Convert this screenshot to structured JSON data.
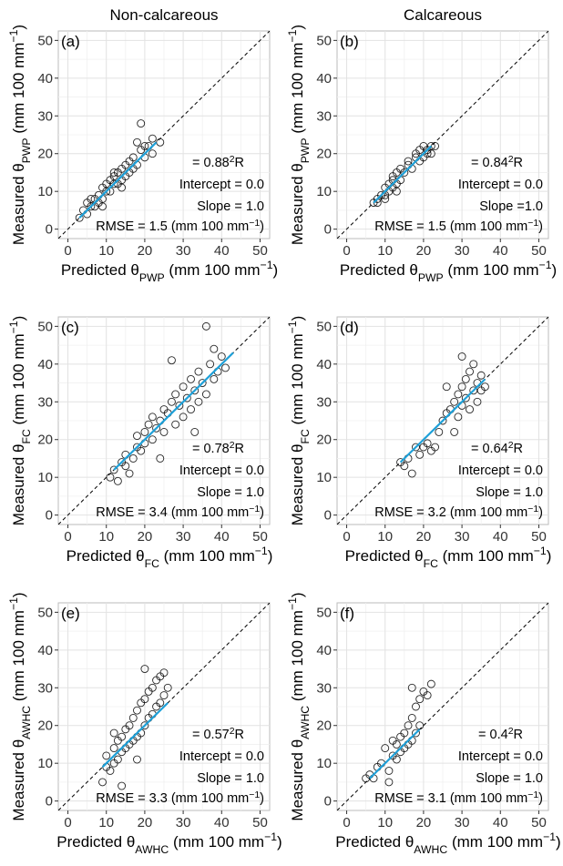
{
  "chart_data": [
    {
      "type": "scatter",
      "title": "Non-calcareous",
      "panel_label": "(a)",
      "xlabel": {
        "text": "Predicted θ",
        "sub": "PWP",
        "unit": " (mm 100 mm",
        "sup": "−1",
        "end": ")"
      },
      "ylabel": {
        "text": "Measured θ",
        "sub": "PWP",
        "unit": " (mm 100 mm",
        "sup": "−1",
        "end": ")"
      },
      "xlim": [
        -2.5,
        52.5
      ],
      "ylim": [
        -2.5,
        52.5
      ],
      "xticks": [
        0,
        10,
        20,
        30,
        40,
        50
      ],
      "yticks": [
        0,
        10,
        20,
        30,
        40,
        50
      ],
      "grid": true,
      "minor_grid": [
        5,
        15,
        25,
        35,
        45
      ],
      "identity_line": true,
      "r2": {
        "label": "R",
        "sup": "2",
        "text": " =  0.88"
      },
      "annotations": [
        "Intercept = 0.0",
        "Slope = 1.0"
      ],
      "rmse": {
        "text": "RMSE = 1.5 (mm 100 mm",
        "sup": "−1",
        "end": ")"
      },
      "series": [
        {
          "color": "#000000",
          "x": [
            3,
            4,
            5,
            5,
            6,
            7,
            7,
            8,
            8,
            9,
            9,
            10,
            10,
            11,
            11,
            12,
            12,
            13,
            13,
            14,
            14,
            15,
            15,
            16,
            16,
            17,
            17,
            18,
            19,
            20,
            21,
            22,
            24,
            22,
            18,
            12,
            6,
            9,
            14,
            20,
            19
          ],
          "values": [
            3,
            5,
            4,
            7,
            6,
            8,
            6,
            9,
            7,
            11,
            8,
            10,
            12,
            10,
            13,
            12,
            14,
            12,
            15,
            13,
            16,
            14,
            17,
            15,
            18,
            16,
            19,
            17,
            21,
            19,
            22,
            20,
            23,
            24,
            23,
            15,
            8,
            6,
            11,
            22,
            28
          ]
        },
        {
          "color": "#1ea0d8",
          "x": [
            3,
            23
          ],
          "values": [
            3,
            23
          ]
        }
      ]
    },
    {
      "type": "scatter",
      "title": "Calcareous",
      "panel_label": "(b)",
      "xlabel": {
        "text": "Predicted θ",
        "sub": "PWP",
        "unit": " (mm 100 mm",
        "sup": "−1",
        "end": ")"
      },
      "ylabel": {
        "text": "Measured θ",
        "sub": "PWP",
        "unit": " (mm 100 mm",
        "sup": "−1",
        "end": ")"
      },
      "xlim": [
        -2.5,
        52.5
      ],
      "ylim": [
        -2.5,
        52.5
      ],
      "xticks": [
        0,
        10,
        20,
        30,
        40,
        50
      ],
      "yticks": [
        0,
        10,
        20,
        30,
        40,
        50
      ],
      "grid": true,
      "minor_grid": [
        5,
        15,
        25,
        35,
        45
      ],
      "identity_line": true,
      "r2": {
        "label": "R",
        "sup": "2",
        "text": " =  0.84"
      },
      "annotations": [
        "Intercept = 0.0",
        "Slope =1.0"
      ],
      "rmse": {
        "text": "RMSE = 1.5 (mm 100 mm",
        "sup": "−1",
        "end": ")"
      },
      "series": [
        {
          "color": "#000000",
          "x": [
            7,
            8,
            8,
            9,
            10,
            10,
            11,
            11,
            12,
            12,
            12,
            13,
            13,
            14,
            14,
            15,
            16,
            17,
            18,
            18,
            19,
            19,
            20,
            20,
            21,
            21,
            22,
            22,
            23,
            16,
            13,
            10
          ],
          "values": [
            7,
            8,
            7,
            9,
            9,
            11,
            10,
            12,
            11,
            13,
            14,
            12,
            15,
            13,
            16,
            15,
            17,
            16,
            19,
            20,
            18,
            21,
            19,
            22,
            20,
            21,
            22,
            20,
            22,
            18,
            10,
            8
          ]
        },
        {
          "color": "#1ea0d8",
          "x": [
            7,
            22
          ],
          "values": [
            7,
            22
          ]
        }
      ]
    },
    {
      "type": "scatter",
      "panel_label": "(c)",
      "xlabel": {
        "text": "Predicted θ",
        "sub": "FC",
        "unit": " (mm 100 mm",
        "sup": "−1",
        "end": ")"
      },
      "ylabel": {
        "text": "Measured θ",
        "sub": "FC",
        "unit": " (mm 100 mm",
        "sup": "−1",
        "end": ")"
      },
      "xlim": [
        -2.5,
        52.5
      ],
      "ylim": [
        -2.5,
        52.5
      ],
      "xticks": [
        0,
        10,
        20,
        30,
        40,
        50
      ],
      "yticks": [
        0,
        10,
        20,
        30,
        40,
        50
      ],
      "grid": true,
      "minor_grid": [
        5,
        15,
        25,
        35,
        45
      ],
      "identity_line": true,
      "r2": {
        "label": "R",
        "sup": "2",
        "text": " =  0.78"
      },
      "annotations": [
        "Intercept = 0.0",
        "Slope = 1.0"
      ],
      "rmse": {
        "text": "RMSE = 3.4 (mm 100 mm",
        "sup": "−1",
        "end": ")"
      },
      "series": [
        {
          "color": "#000000",
          "x": [
            11,
            12,
            13,
            14,
            15,
            15,
            16,
            17,
            18,
            18,
            19,
            20,
            20,
            21,
            22,
            22,
            23,
            24,
            25,
            25,
            26,
            27,
            28,
            28,
            29,
            30,
            30,
            31,
            32,
            32,
            33,
            34,
            34,
            35,
            36,
            37,
            38,
            38,
            39,
            40,
            41,
            36,
            27,
            24,
            33
          ],
          "values": [
            10,
            12,
            9,
            14,
            13,
            16,
            11,
            15,
            18,
            21,
            17,
            22,
            19,
            24,
            20,
            26,
            23,
            25,
            22,
            28,
            27,
            30,
            24,
            32,
            29,
            26,
            34,
            31,
            28,
            36,
            33,
            30,
            38,
            35,
            32,
            40,
            36,
            44,
            38,
            42,
            39,
            50,
            41,
            15,
            22
          ]
        },
        {
          "color": "#1ea0d8",
          "x": [
            12,
            43
          ],
          "values": [
            12,
            43
          ]
        }
      ]
    },
    {
      "type": "scatter",
      "panel_label": "(d)",
      "xlabel": {
        "text": "Predicted θ",
        "sub": "FC",
        "unit": " (mm 100 mm",
        "sup": "−1",
        "end": ")"
      },
      "ylabel": {
        "text": "Measured θ",
        "sub": "FC",
        "unit": " (mm 100 mm",
        "sup": "−1",
        "end": ")"
      },
      "xlim": [
        -2.5,
        52.5
      ],
      "ylim": [
        -2.5,
        52.5
      ],
      "xticks": [
        0,
        10,
        20,
        30,
        40,
        50
      ],
      "yticks": [
        0,
        10,
        20,
        30,
        40,
        50
      ],
      "grid": true,
      "minor_grid": [
        5,
        15,
        25,
        35,
        45
      ],
      "identity_line": true,
      "r2": {
        "label": "R",
        "sup": "2",
        "text": " =  0.64"
      },
      "annotations": [
        "Intercept = 0.0",
        "Slope = 1.0"
      ],
      "rmse": {
        "text": "RMSE = 3.2 (mm 100 mm",
        "sup": "−1",
        "end": ")"
      },
      "series": [
        {
          "color": "#000000",
          "x": [
            14,
            15,
            16,
            17,
            18,
            19,
            20,
            21,
            22,
            23,
            24,
            25,
            26,
            27,
            28,
            28,
            29,
            29,
            30,
            30,
            31,
            31,
            32,
            32,
            33,
            33,
            34,
            34,
            35,
            35,
            36,
            30,
            26
          ],
          "values": [
            14,
            13,
            15,
            11,
            18,
            16,
            18,
            19,
            17,
            18,
            22,
            25,
            27,
            28,
            30,
            22,
            32,
            26,
            29,
            34,
            31,
            36,
            28,
            38,
            33,
            40,
            35,
            30,
            37,
            33,
            34,
            42,
            34
          ]
        },
        {
          "color": "#1ea0d8",
          "x": [
            14,
            36
          ],
          "values": [
            14,
            36
          ]
        }
      ]
    },
    {
      "type": "scatter",
      "panel_label": "(e)",
      "xlabel": {
        "text": "Predicted θ",
        "sub": "AWHC",
        "unit": " (mm 100 mm",
        "sup": "−1",
        "end": ")"
      },
      "ylabel": {
        "text": "Measured θ",
        "sub": "AWHC",
        "unit": " (mm 100 mm",
        "sup": "−1",
        "end": ")"
      },
      "xlim": [
        -2.5,
        52.5
      ],
      "ylim": [
        -2.5,
        52.5
      ],
      "xticks": [
        0,
        10,
        20,
        30,
        40,
        50
      ],
      "yticks": [
        0,
        10,
        20,
        30,
        40,
        50
      ],
      "grid": true,
      "minor_grid": [
        5,
        15,
        25,
        35,
        45
      ],
      "identity_line": true,
      "r2": {
        "label": "R",
        "sup": "2",
        "text": " =  0.57"
      },
      "annotations": [
        "Intercept = 0.0",
        "Slope = 1.0"
      ],
      "rmse": {
        "text": "RMSE = 3.3 (mm 100 mm",
        "sup": "−1",
        "end": ")"
      },
      "series": [
        {
          "color": "#000000",
          "x": [
            9,
            10,
            10,
            11,
            12,
            12,
            13,
            13,
            14,
            14,
            15,
            15,
            16,
            16,
            17,
            17,
            18,
            18,
            19,
            19,
            20,
            20,
            21,
            21,
            22,
            22,
            23,
            23,
            24,
            24,
            25,
            25,
            26,
            20,
            18,
            14,
            12
          ],
          "values": [
            5,
            9,
            12,
            8,
            14,
            10,
            16,
            11,
            17,
            13,
            19,
            14,
            20,
            15,
            22,
            16,
            24,
            17,
            26,
            18,
            27,
            20,
            29,
            22,
            30,
            23,
            32,
            25,
            33,
            26,
            34,
            28,
            30,
            35,
            11,
            4,
            18
          ]
        },
        {
          "color": "#1ea0d8",
          "x": [
            9,
            26
          ],
          "values": [
            9,
            26
          ]
        }
      ]
    },
    {
      "type": "scatter",
      "panel_label": "(f)",
      "xlabel": {
        "text": "Predicted θ",
        "sub": "AWHC",
        "unit": " (mm 100 mm",
        "sup": "−1",
        "end": ")"
      },
      "ylabel": {
        "text": "Measured θ",
        "sub": "AWHC",
        "unit": " (mm 100 mm",
        "sup": "−1",
        "end": ")"
      },
      "xlim": [
        -2.5,
        52.5
      ],
      "ylim": [
        -2.5,
        52.5
      ],
      "xticks": [
        0,
        10,
        20,
        30,
        40,
        50
      ],
      "yticks": [
        0,
        10,
        20,
        30,
        40,
        50
      ],
      "grid": true,
      "minor_grid": [
        5,
        15,
        25,
        35,
        45
      ],
      "identity_line": true,
      "r2": {
        "label": "R",
        "sup": "2",
        "text": " =  0.4"
      },
      "annotations": [
        "Intercept = 0.0",
        "Slope = 1.0"
      ],
      "rmse": {
        "text": "RMSE = 3.1 (mm 100 mm",
        "sup": "−1",
        "end": ")"
      },
      "series": [
        {
          "color": "#000000",
          "x": [
            5,
            6,
            7,
            8,
            9,
            10,
            11,
            12,
            12,
            13,
            13,
            14,
            14,
            15,
            15,
            16,
            16,
            17,
            17,
            18,
            18,
            19,
            19,
            20,
            21,
            22,
            17,
            11
          ],
          "values": [
            6,
            7,
            6,
            9,
            10,
            14,
            8,
            16,
            12,
            15,
            11,
            17,
            13,
            18,
            14,
            20,
            15,
            22,
            16,
            25,
            18,
            27,
            20,
            29,
            28,
            31,
            30,
            5
          ]
        },
        {
          "color": "#1ea0d8",
          "x": [
            6,
            19
          ],
          "values": [
            6,
            19
          ]
        }
      ]
    }
  ]
}
